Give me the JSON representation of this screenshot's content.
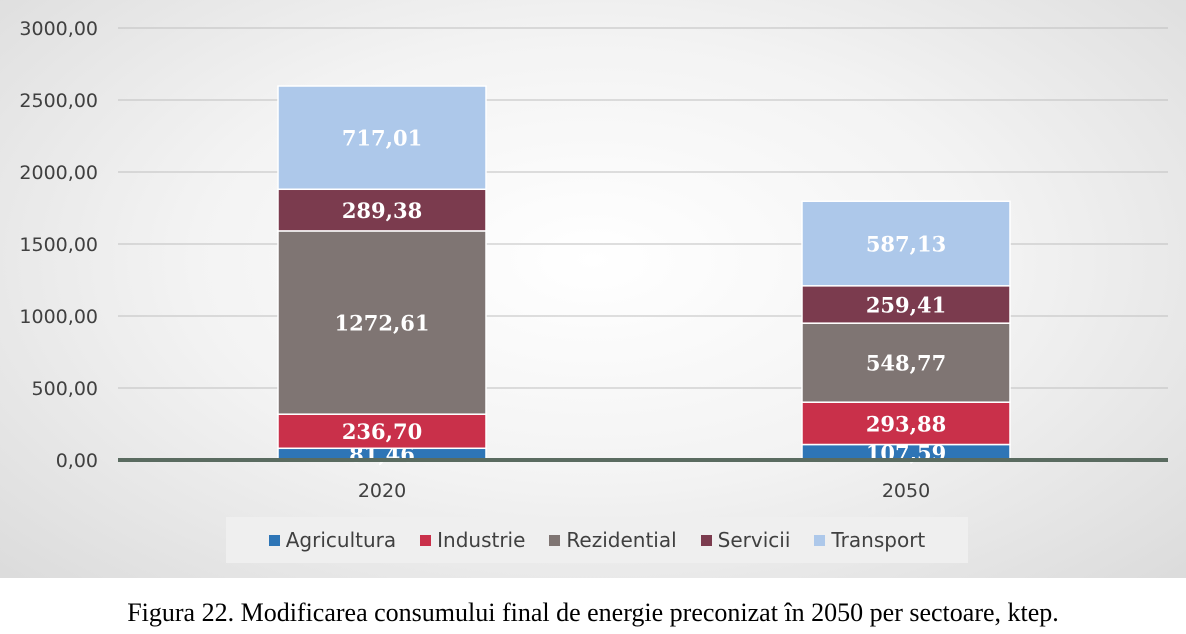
{
  "caption": "Figura 22. Modificarea consumului final de energie preconizat în 2050 per sectoare, ktep.",
  "chart_data": {
    "type": "bar",
    "stacked": true,
    "title": "",
    "xlabel": "",
    "ylabel": "",
    "categories": [
      "2020",
      "2050"
    ],
    "ylim": [
      0,
      3000
    ],
    "yticks": [
      "0,00",
      "500,00",
      "1000,00",
      "1500,00",
      "2000,00",
      "2500,00",
      "3000,00"
    ],
    "ytick_values": [
      0,
      500,
      1000,
      1500,
      2000,
      2500,
      3000
    ],
    "grid": true,
    "legend_position": "bottom",
    "series": [
      {
        "name": "Agricultura",
        "color": "#2E75B6",
        "values": [
          81.46,
          107.59
        ],
        "labels": [
          "81,46",
          "107,59"
        ]
      },
      {
        "name": "Industrie",
        "color": "#C9304A",
        "values": [
          236.7,
          293.88
        ],
        "labels": [
          "236,70",
          "293,88"
        ]
      },
      {
        "name": "Rezidential",
        "color": "#7F7573",
        "values": [
          1272.61,
          548.77
        ],
        "labels": [
          "1272,61",
          "548,77"
        ]
      },
      {
        "name": "Servicii",
        "color": "#7B3B4E",
        "values": [
          289.38,
          259.41
        ],
        "labels": [
          "289,38",
          "259,41"
        ]
      },
      {
        "name": "Transport",
        "color": "#ADC8EA",
        "values": [
          717.01,
          587.13
        ],
        "labels": [
          "717,01",
          "587,13"
        ]
      }
    ]
  }
}
